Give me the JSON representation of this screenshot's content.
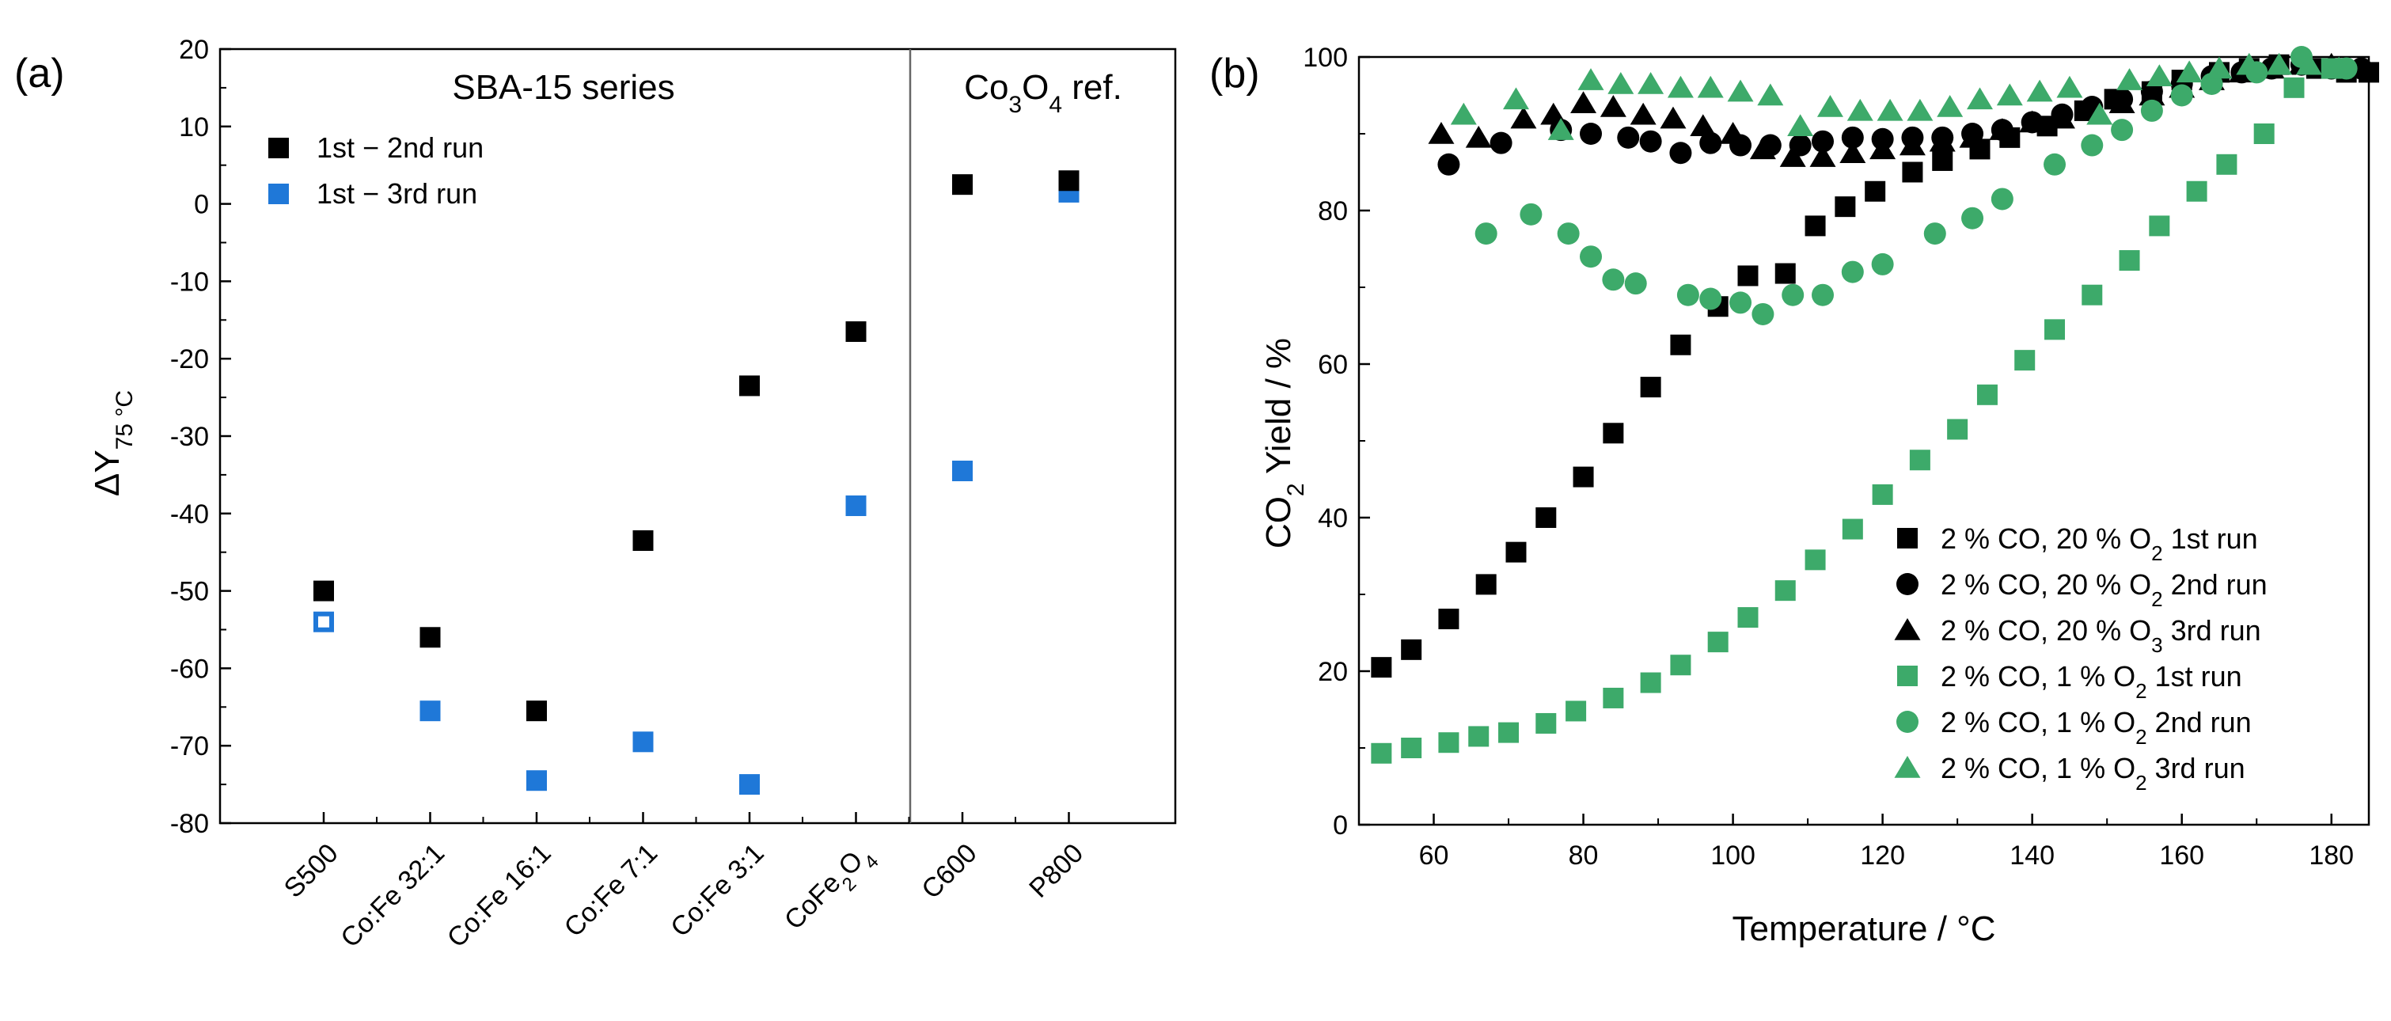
{
  "chart_data": [
    {
      "type": "scatter",
      "panel_label": "(a)",
      "ylabel_main": "ΔY",
      "ylabel_sub": "75 °C",
      "ylim": [
        -80,
        20
      ],
      "yticks": [
        20,
        10,
        0,
        -10,
        -20,
        -30,
        -40,
        -50,
        -60,
        -70,
        -80
      ],
      "categories": [
        "S500",
        "Co:Fe 32:1",
        "Co:Fe 16:1",
        "Co:Fe 7:1",
        "Co:Fe 3:1",
        "CoFe2O4",
        "C600",
        "P800"
      ],
      "category_parts": [
        {
          "main": "S500"
        },
        {
          "main": "Co:Fe 32:1"
        },
        {
          "main": "Co:Fe 16:1"
        },
        {
          "main": "Co:Fe 7:1"
        },
        {
          "main": "Co:Fe 3:1"
        },
        {
          "main": "CoFe",
          "sub": "2",
          "after": "O",
          "sub2": "4"
        },
        {
          "main": "C600"
        },
        {
          "main": "P800"
        }
      ],
      "groups": [
        {
          "label": "SBA-15 series"
        },
        {
          "label_main": "Co",
          "sub1": "3",
          "mid": "O",
          "sub2": "4",
          "label_end": " ref."
        }
      ],
      "series": [
        {
          "name": "1st − 2nd run",
          "color": "#000000",
          "values": [
            -50,
            -56,
            -65.5,
            -43.5,
            -23.5,
            -16.5,
            2.5,
            3
          ]
        },
        {
          "name": "1st − 3rd run",
          "color": "#1f78d8",
          "values": [
            -54,
            -65.5,
            -74.5,
            -69.5,
            -75,
            -39,
            -34.5,
            1.5
          ],
          "hollow": [
            true,
            false,
            false,
            false,
            false,
            false,
            false,
            false
          ]
        }
      ]
    },
    {
      "type": "scatter",
      "panel_label": "(b)",
      "xlabel": "Temperature / °C",
      "ylabel_parts": {
        "a": "CO",
        "sub": "2",
        "b": " Yield / %"
      },
      "xlim": [
        50,
        185
      ],
      "ylim": [
        0,
        100
      ],
      "xticks": [
        60,
        80,
        100,
        120,
        140,
        160,
        180
      ],
      "yticks": [
        0,
        20,
        40,
        60,
        80,
        100
      ],
      "series": [
        {
          "name": "2 % CO, 20 % O",
          "sub": "2",
          "suffix": " 1st run",
          "marker": "square",
          "color": "#000000",
          "x": [
            53,
            57,
            62,
            67,
            71,
            75,
            80,
            84,
            89,
            93,
            98,
            102,
            107,
            111,
            115,
            119,
            124,
            128,
            133,
            137,
            142,
            147,
            151,
            156,
            160,
            165,
            169,
            173,
            178,
            182,
            185
          ],
          "y": [
            20.5,
            22.8,
            26.8,
            31.3,
            35.5,
            40,
            45.3,
            51,
            57,
            62.5,
            67.5,
            71.5,
            71.8,
            78,
            80.5,
            82.5,
            85,
            86.5,
            88,
            89.5,
            91,
            93,
            94.5,
            95.5,
            97,
            98,
            98.5,
            99,
            98.5,
            98,
            98
          ]
        },
        {
          "name": "2 % CO, 20 % O",
          "sub": "2",
          "suffix": " 2nd run",
          "marker": "circle",
          "color": "#000000",
          "x": [
            62,
            69,
            77,
            81,
            86,
            89,
            93,
            97,
            101,
            105,
            109,
            112,
            116,
            120,
            124,
            128,
            132,
            136,
            140,
            144,
            148,
            152,
            156,
            160,
            164,
            168,
            172,
            176,
            180,
            184
          ],
          "y": [
            86,
            88.8,
            90.5,
            90,
            89.5,
            89,
            87.5,
            88.8,
            88.5,
            88.5,
            88.5,
            89,
            89.5,
            89.3,
            89.5,
            89.5,
            90,
            90.5,
            91.5,
            92.5,
            93.5,
            94.5,
            95.5,
            96.5,
            97.5,
            98,
            98.5,
            99,
            98.5,
            98.5
          ]
        },
        {
          "name": "2 % CO, 20 % O",
          "sub": "3",
          "suffix": " 3rd run",
          "marker": "triangle",
          "color": "#000000",
          "x": [
            61,
            66,
            72,
            76,
            80,
            84,
            88,
            92,
            96,
            100,
            104,
            108,
            112,
            116,
            120,
            124,
            128,
            132,
            136,
            140,
            144,
            148,
            152,
            156,
            160,
            164,
            168,
            172,
            176,
            180
          ],
          "y": [
            90,
            89.5,
            92,
            92.5,
            94,
            93.5,
            92.5,
            92,
            91,
            90,
            88,
            87,
            87,
            87.5,
            88,
            88.5,
            89,
            89.5,
            90.5,
            91.5,
            92,
            93,
            94,
            95,
            96,
            97,
            98,
            98.5,
            99,
            99
          ]
        },
        {
          "name": "2 % CO, 1 % O",
          "sub": "2",
          "suffix": " 1st run",
          "marker": "square",
          "color": "#3daa6a",
          "x": [
            53,
            57,
            62,
            66,
            70,
            75,
            79,
            84,
            89,
            93,
            98,
            102,
            107,
            111,
            116,
            120,
            125,
            130,
            134,
            139,
            143,
            148,
            153,
            157,
            162,
            166,
            171,
            175,
            180
          ],
          "y": [
            9.3,
            10,
            10.7,
            11.5,
            12,
            13.2,
            14.8,
            16.5,
            18.5,
            20.8,
            23.8,
            27,
            30.5,
            34.5,
            38.5,
            43,
            47.5,
            51.5,
            56,
            60.5,
            64.5,
            69,
            73.5,
            78,
            82.5,
            86,
            90,
            96,
            98.5
          ]
        },
        {
          "name": "2 % CO, 1 % O",
          "sub": "2",
          "suffix": " 2nd run",
          "marker": "circle",
          "color": "#3daa6a",
          "x": [
            67,
            73,
            78,
            81,
            84,
            87,
            94,
            97,
            101,
            104,
            108,
            112,
            116,
            120,
            127,
            132,
            136,
            143,
            148,
            152,
            156,
            160,
            164,
            170,
            176,
            182
          ],
          "y": [
            77,
            79.5,
            77,
            74,
            71,
            70.5,
            69,
            68.5,
            68,
            66.5,
            69,
            69,
            72,
            73,
            77,
            79,
            81.5,
            86,
            88.5,
            90.5,
            93,
            95,
            96.5,
            98,
            100,
            98.5
          ]
        },
        {
          "name": "2 % CO, 1 % O",
          "sub": "2",
          "suffix": " 3rd run",
          "marker": "triangle",
          "color": "#3daa6a",
          "x": [
            64,
            71,
            77,
            81,
            85,
            89,
            93,
            97,
            101,
            105,
            109,
            113,
            117,
            121,
            125,
            129,
            133,
            137,
            141,
            145,
            149,
            153,
            157,
            161,
            165,
            169,
            173,
            177,
            181
          ],
          "y": [
            92.5,
            94.5,
            90.5,
            97,
            96.5,
            96.5,
            96,
            96,
            95.5,
            95,
            91,
            93.5,
            93,
            93,
            93,
            93.5,
            94.5,
            95,
            95.5,
            96,
            92.5,
            97,
            97.5,
            98,
            98.5,
            99,
            99,
            99,
            98.5
          ]
        }
      ]
    }
  ]
}
